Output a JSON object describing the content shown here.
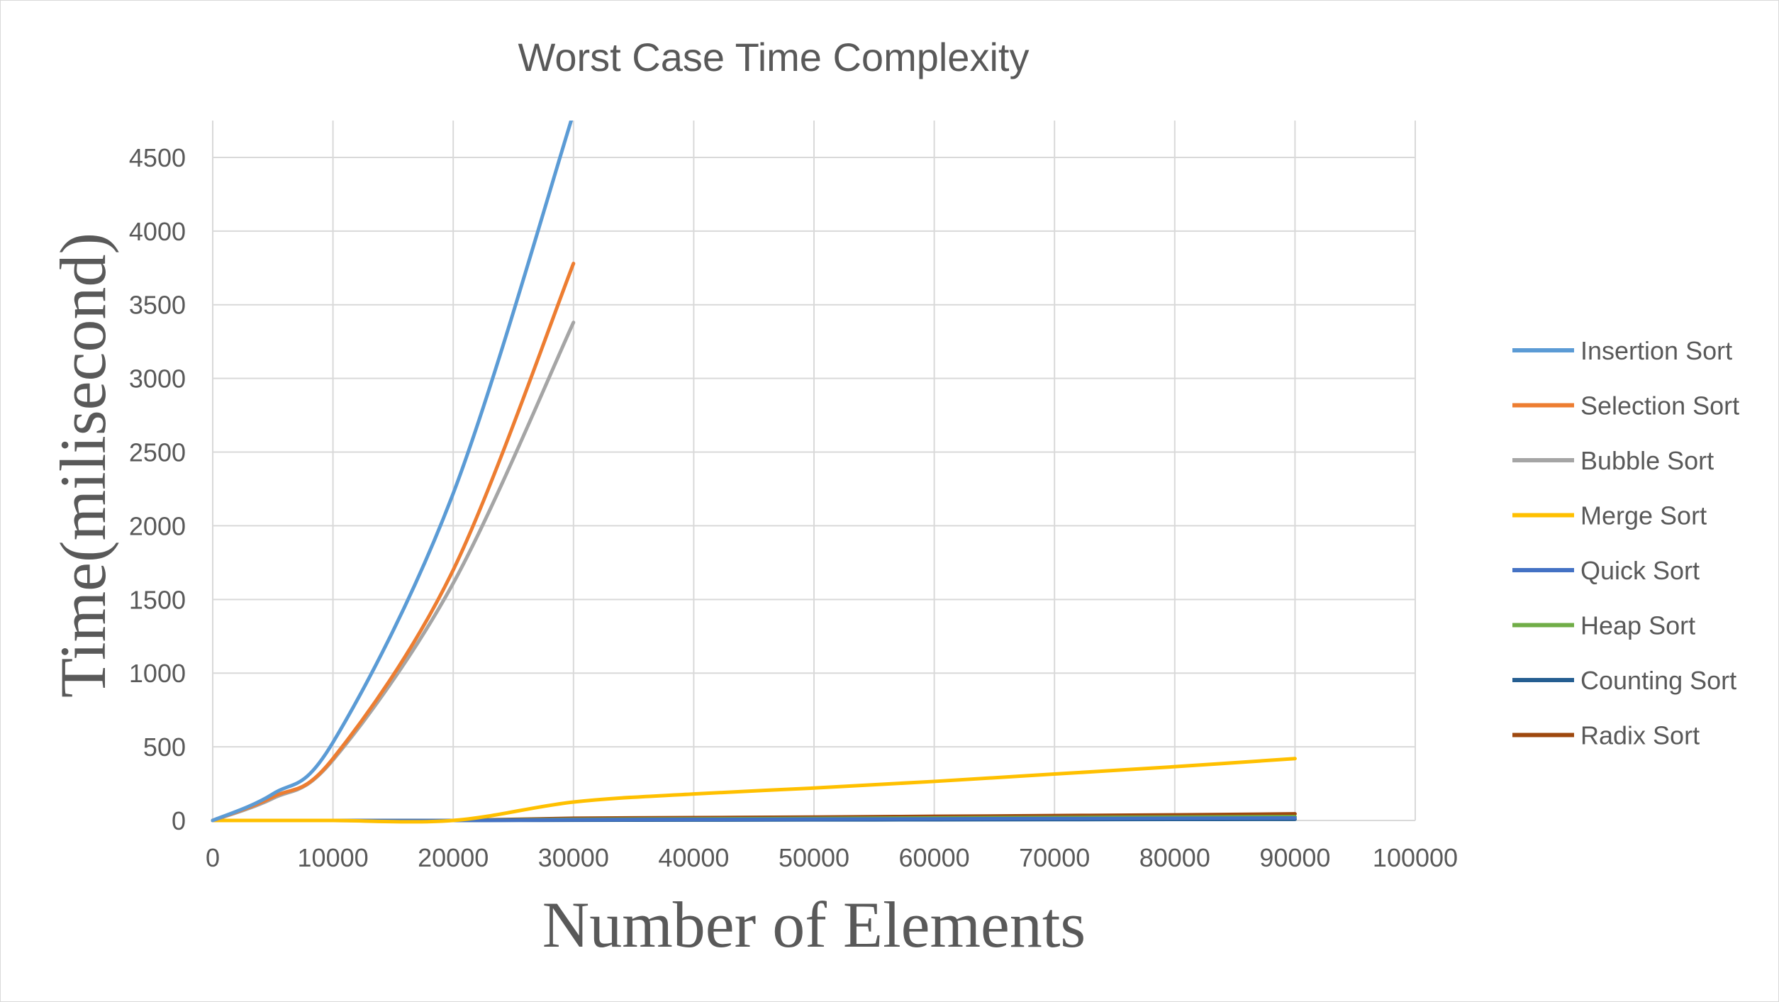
{
  "chart_data": {
    "type": "line",
    "title": "Worst Case Time Complexity",
    "xlabel": "Number of Elements",
    "ylabel": "Time(milisecond)",
    "xlim": [
      0,
      100000
    ],
    "ylim": [
      0,
      4750
    ],
    "xticks": [
      0,
      10000,
      20000,
      30000,
      40000,
      50000,
      60000,
      70000,
      80000,
      90000,
      100000
    ],
    "yticks": [
      0,
      500,
      1000,
      1500,
      2000,
      2500,
      3000,
      3500,
      4000,
      4500
    ],
    "grid": true,
    "legend_position": "right",
    "x": [
      0,
      5000,
      10000,
      20000,
      30000,
      40000,
      50000,
      60000,
      70000,
      80000,
      90000
    ],
    "series": [
      {
        "name": "Insertion Sort",
        "color": "#5B9BD5",
        "values": [
          0,
          180,
          530,
          2220,
          4800,
          null,
          null,
          null,
          null,
          null,
          null
        ]
      },
      {
        "name": "Selection Sort",
        "color": "#ED7D31",
        "values": [
          0,
          160,
          420,
          1700,
          3780,
          null,
          null,
          null,
          null,
          null,
          null
        ]
      },
      {
        "name": "Bubble Sort",
        "color": "#A5A5A5",
        "values": [
          0,
          150,
          410,
          1610,
          3380,
          null,
          null,
          null,
          null,
          null,
          null
        ]
      },
      {
        "name": "Merge Sort",
        "color": "#FFC000",
        "values": [
          0,
          0,
          0,
          0,
          125,
          180,
          220,
          265,
          315,
          365,
          420
        ]
      },
      {
        "name": "Quick Sort",
        "color": "#4472C4",
        "values": [
          0,
          0,
          0,
          0,
          5,
          7,
          9,
          11,
          13,
          15,
          17
        ]
      },
      {
        "name": "Heap Sort",
        "color": "#70AD47",
        "values": [
          0,
          0,
          0,
          0,
          8,
          11,
          14,
          17,
          20,
          23,
          26
        ]
      },
      {
        "name": "Counting Sort",
        "color": "#255E91",
        "values": [
          0,
          0,
          0,
          0,
          2,
          3,
          4,
          5,
          6,
          7,
          8
        ]
      },
      {
        "name": "Radix Sort",
        "color": "#9E480E",
        "values": [
          0,
          0,
          0,
          0,
          15,
          19,
          23,
          28,
          33,
          38,
          45
        ]
      }
    ]
  }
}
